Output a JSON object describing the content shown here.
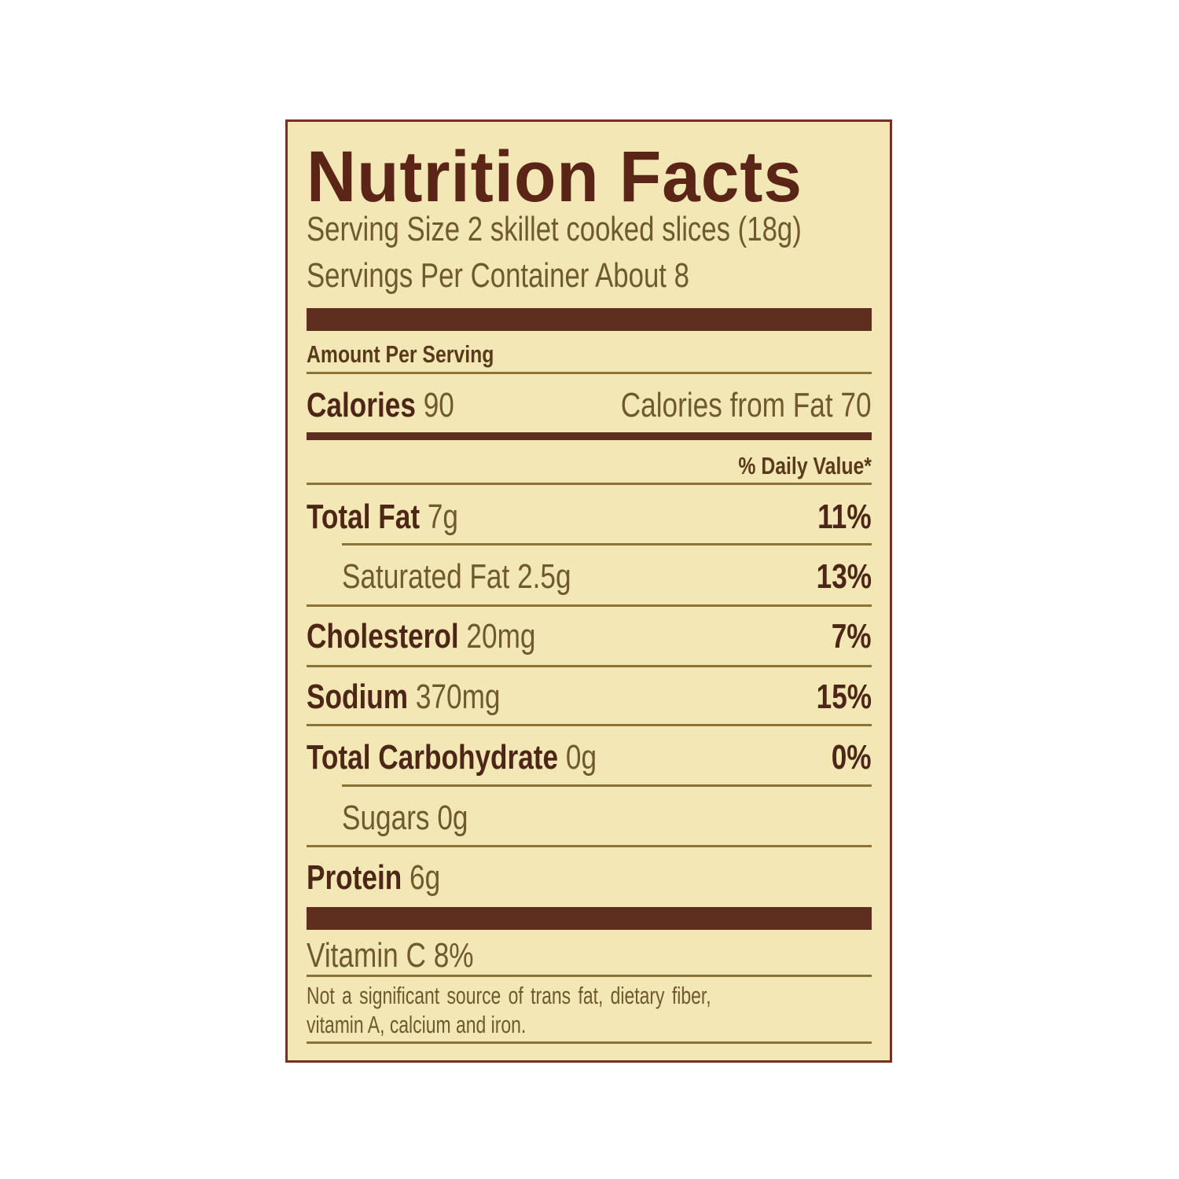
{
  "title": "Nutrition Facts",
  "serving_size": "Serving Size 2 skillet cooked slices (18g)",
  "servings_per_container": "Servings Per Container About 8",
  "amount_per_serving": "Amount Per Serving",
  "calories": {
    "label": "Calories",
    "value": "90",
    "from_fat": "Calories from Fat 70"
  },
  "daily_value_header": "% Daily Value*",
  "nutrients": [
    {
      "label": "Total Fat",
      "amount": "7g",
      "dv": "11%"
    },
    {
      "label": "Saturated Fat",
      "amount": "2.5g",
      "dv": "13%"
    },
    {
      "label": "Cholesterol",
      "amount": "20mg",
      "dv": "7%"
    },
    {
      "label": "Sodium",
      "amount": "370mg",
      "dv": "15%"
    },
    {
      "label": "Total Carbohydrate",
      "amount": "0g",
      "dv": "0%"
    },
    {
      "label": "Sugars",
      "amount": "0g",
      "dv": ""
    },
    {
      "label": "Protein",
      "amount": "6g",
      "dv": ""
    }
  ],
  "vitamin": "Vitamin C 8%",
  "footnote_line1": "Not a significant source of trans fat, dietary fiber,",
  "footnote_line2": "vitamin A, calcium and iron.",
  "colors": {
    "background": "#f4e7b6",
    "border": "#7a2f22",
    "title": "#5a2517",
    "text": "#6e5a2c",
    "bar": "#5e2e1f"
  }
}
